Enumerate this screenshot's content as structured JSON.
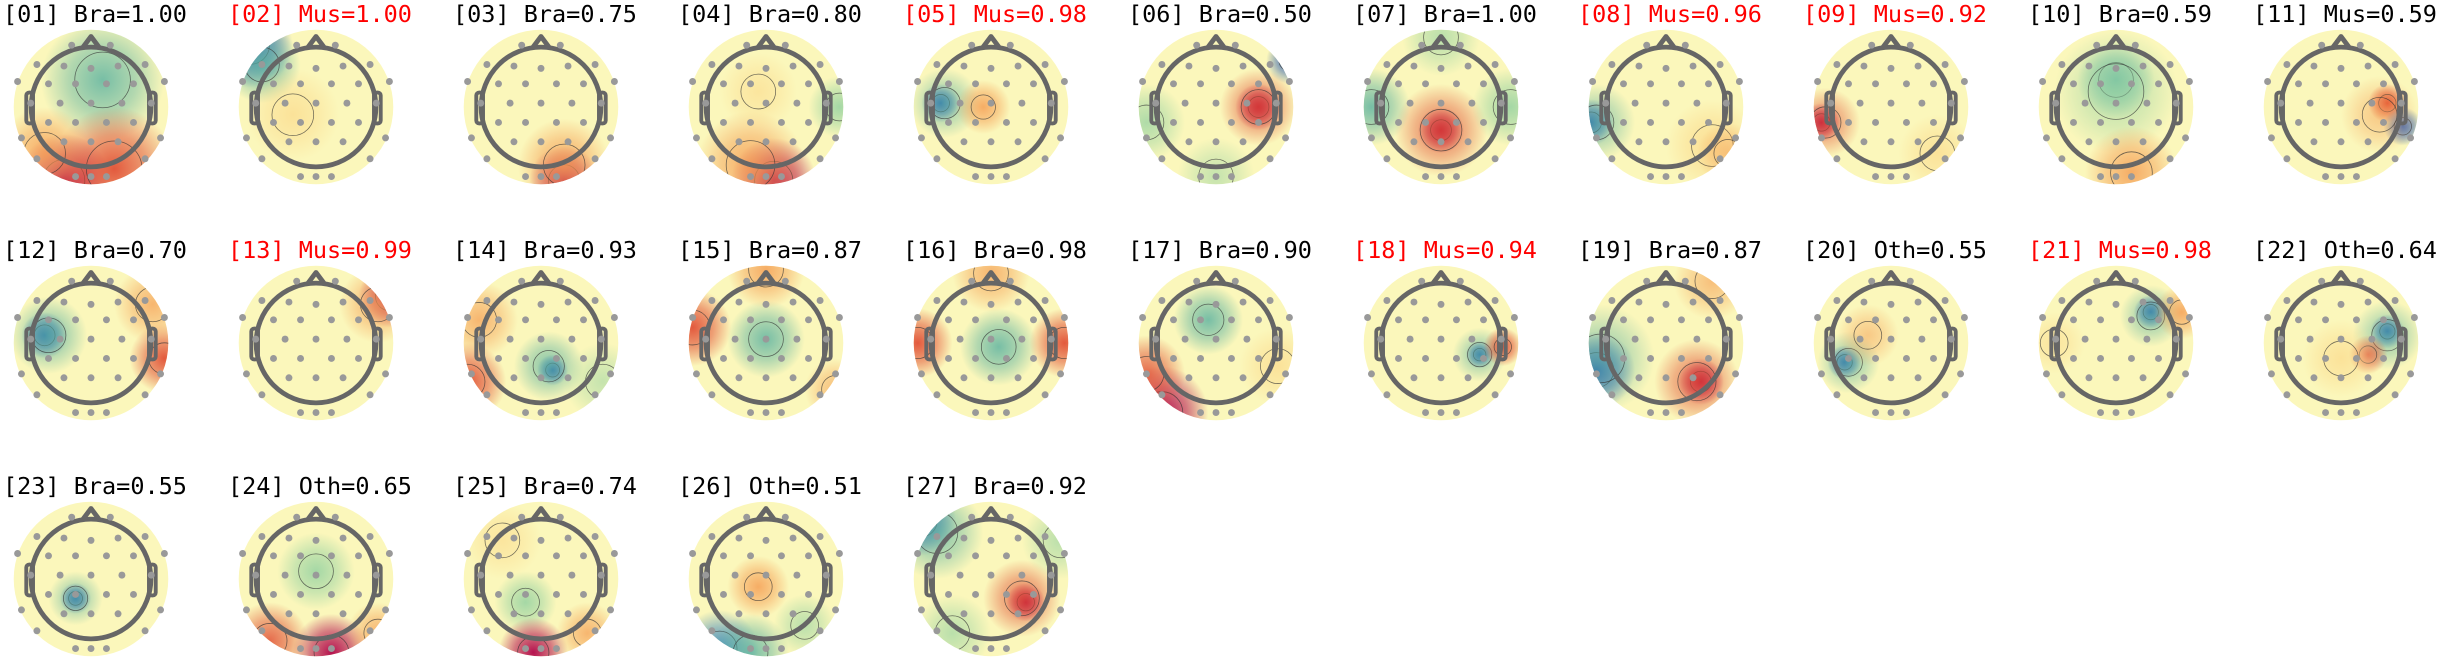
{
  "colors": {
    "brain_title": "#000000",
    "muscle_title": "#ff0000",
    "map_base": "#fbf7bb",
    "electrode": "#999999",
    "head_outline": "#666666"
  },
  "chart_data": {
    "type": "heatmap",
    "subtype": "scalp-topomap-grid",
    "colormap": "Spectral",
    "panels": [
      {
        "title": "[01] Bra=1.00",
        "label": "Bra",
        "score": 1.0,
        "highlight": false
      },
      {
        "title": "[02] Mus=1.00",
        "label": "Mus",
        "score": 1.0,
        "highlight": true
      },
      {
        "title": "[03] Bra=0.75",
        "label": "Bra",
        "score": 0.75,
        "highlight": false
      },
      {
        "title": "[04] Bra=0.80",
        "label": "Bra",
        "score": 0.8,
        "highlight": false
      },
      {
        "title": "[05] Mus=0.98",
        "label": "Mus",
        "score": 0.98,
        "highlight": true
      },
      {
        "title": "[06] Bra=0.50",
        "label": "Bra",
        "score": 0.5,
        "highlight": false
      },
      {
        "title": "[07] Bra=1.00",
        "label": "Bra",
        "score": 1.0,
        "highlight": false
      },
      {
        "title": "[08] Mus=0.96",
        "label": "Mus",
        "score": 0.96,
        "highlight": true
      },
      {
        "title": "[09] Mus=0.92",
        "label": "Mus",
        "score": 0.92,
        "highlight": true
      },
      {
        "title": "[10] Bra=0.59",
        "label": "Bra",
        "score": 0.59,
        "highlight": false
      },
      {
        "title": "[11] Mus=0.59",
        "label": "Mus",
        "score": 0.59,
        "highlight": false
      },
      {
        "title": "[12] Bra=0.70",
        "label": "Bra",
        "score": 0.7,
        "highlight": false
      },
      {
        "title": "[13] Mus=0.99",
        "label": "Mus",
        "score": 0.99,
        "highlight": true
      },
      {
        "title": "[14] Bra=0.93",
        "label": "Bra",
        "score": 0.93,
        "highlight": false
      },
      {
        "title": "[15] Bra=0.87",
        "label": "Bra",
        "score": 0.87,
        "highlight": false
      },
      {
        "title": "[16] Bra=0.98",
        "label": "Bra",
        "score": 0.98,
        "highlight": false
      },
      {
        "title": "[17] Bra=0.90",
        "label": "Bra",
        "score": 0.9,
        "highlight": false
      },
      {
        "title": "[18] Mus=0.94",
        "label": "Mus",
        "score": 0.94,
        "highlight": true
      },
      {
        "title": "[19] Bra=0.87",
        "label": "Bra",
        "score": 0.87,
        "highlight": false
      },
      {
        "title": "[20] Oth=0.55",
        "label": "Oth",
        "score": 0.55,
        "highlight": false
      },
      {
        "title": "[21] Mus=0.98",
        "label": "Mus",
        "score": 0.98,
        "highlight": true
      },
      {
        "title": "[22] Oth=0.64",
        "label": "Oth",
        "score": 0.64,
        "highlight": false
      },
      {
        "title": "[23] Bra=0.55",
        "label": "Bra",
        "score": 0.55,
        "highlight": false
      },
      {
        "title": "[24] Oth=0.65",
        "label": "Oth",
        "score": 0.65,
        "highlight": false
      },
      {
        "title": "[25] Bra=0.74",
        "label": "Bra",
        "score": 0.74,
        "highlight": false
      },
      {
        "title": "[26] Oth=0.51",
        "label": "Oth",
        "score": 0.51,
        "highlight": false
      },
      {
        "title": "[27] Bra=0.92",
        "label": "Bra",
        "score": 0.92,
        "highlight": false
      }
    ]
  }
}
